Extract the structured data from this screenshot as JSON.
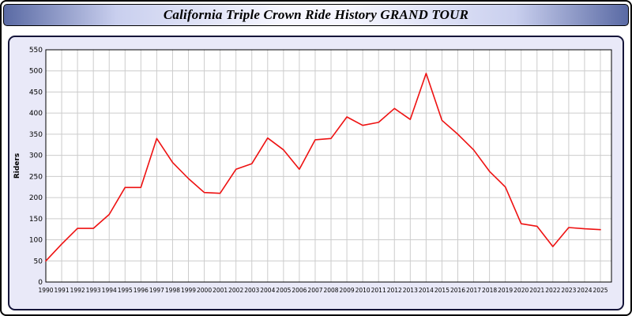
{
  "title": "California Triple Crown Ride History GRAND TOUR",
  "chart_data": {
    "type": "line",
    "title": "California Triple Crown Ride History GRAND TOUR",
    "xlabel": "",
    "ylabel": "Riders",
    "ylim": [
      0,
      550
    ],
    "ytick_step": 50,
    "grid": true,
    "legend": "none",
    "line_color": "#ee1111",
    "x": [
      1990,
      1991,
      1992,
      1993,
      1994,
      1995,
      1996,
      1997,
      1998,
      1999,
      2000,
      2001,
      2002,
      2003,
      2004,
      2005,
      2006,
      2007,
      2008,
      2009,
      2010,
      2011,
      2012,
      2013,
      2014,
      2015,
      2016,
      2017,
      2018,
      2019,
      2020,
      2021,
      2022,
      2023,
      2024,
      2025
    ],
    "values": [
      50,
      90,
      127,
      127,
      160,
      224,
      224,
      340,
      283,
      245,
      212,
      210,
      267,
      280,
      341,
      313,
      267,
      337,
      340,
      391,
      371,
      378,
      411,
      385,
      494,
      383,
      350,
      313,
      262,
      225,
      138,
      132,
      84,
      129,
      126,
      124
    ]
  },
  "colors": {
    "panel_bg": "#e9e9f8",
    "plot_bg": "#ffffff",
    "grid": "#cccccc",
    "axis": "#000000",
    "line": "#ee1111"
  }
}
